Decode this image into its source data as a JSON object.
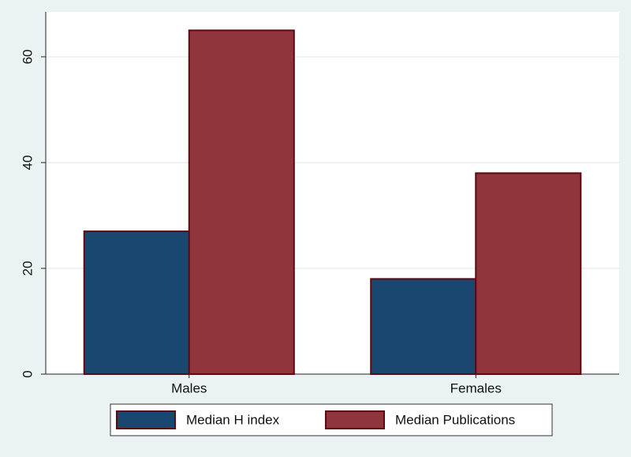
{
  "chart_data": {
    "type": "bar",
    "categories": [
      "Males",
      "Females"
    ],
    "series": [
      {
        "name": "Median H index",
        "color": "#1a476f",
        "values": [
          27,
          18
        ]
      },
      {
        "name": "Median Publications",
        "color": "#90353b",
        "values": [
          65,
          38
        ]
      }
    ],
    "ylim": [
      0,
      68.5
    ],
    "yticks": [
      0,
      20,
      40,
      60
    ],
    "grid": true
  }
}
